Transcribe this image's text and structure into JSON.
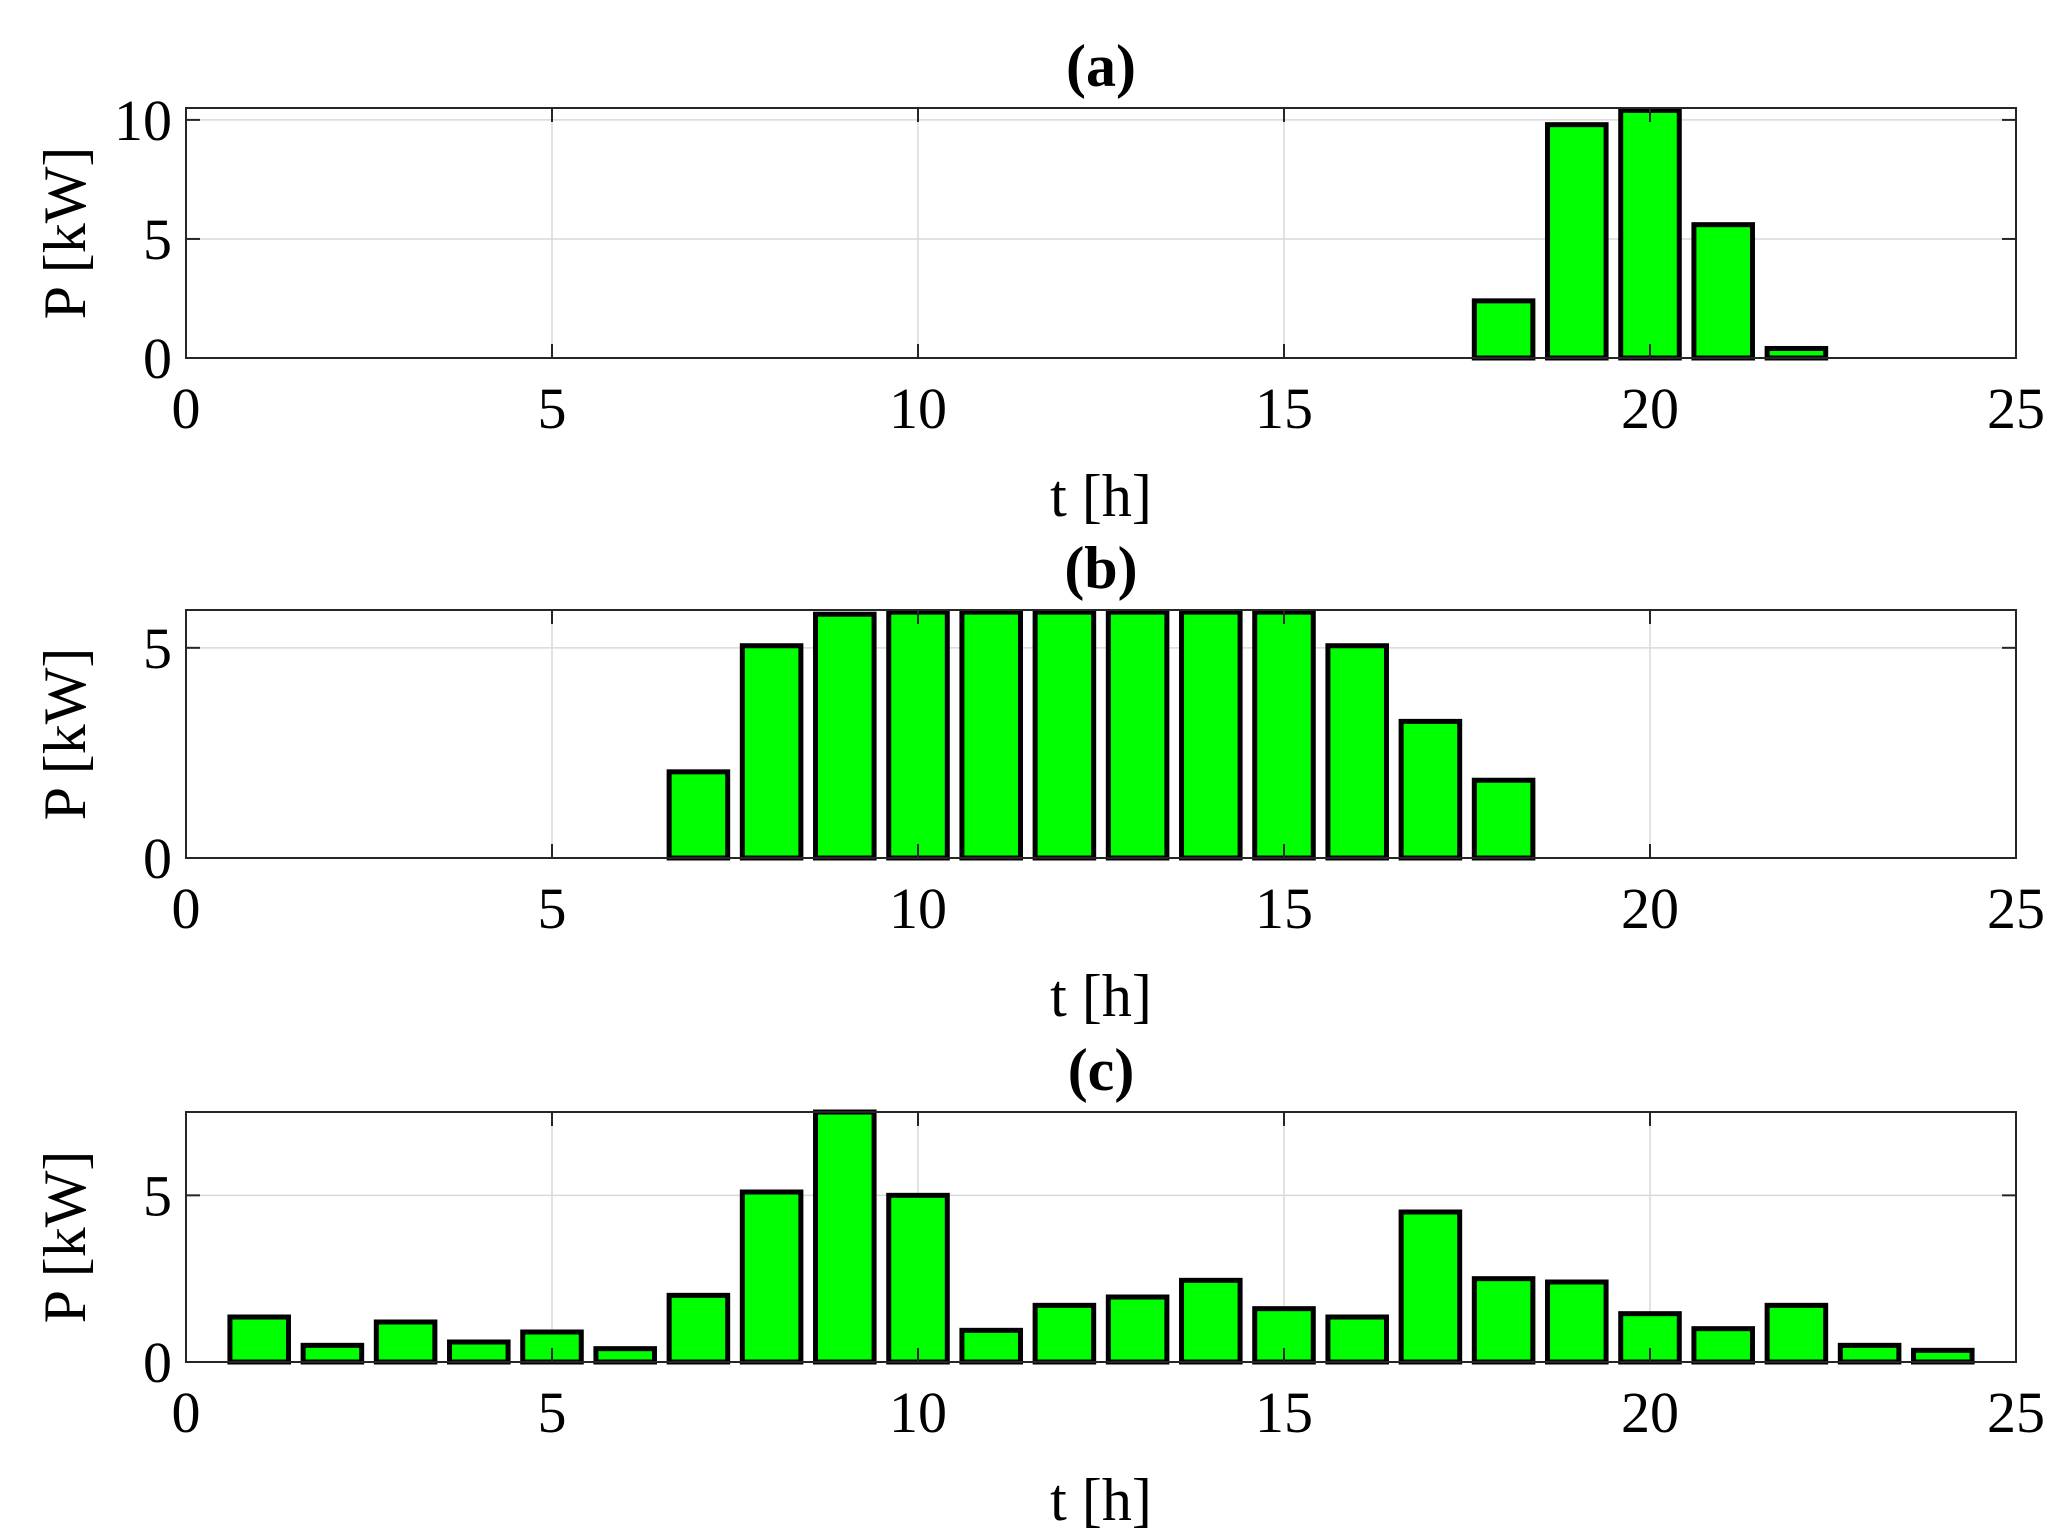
{
  "colors": {
    "bar_fill": "#00ff00",
    "bar_edge": "#000000"
  },
  "chart_data": [
    {
      "type": "bar",
      "title": "(a)",
      "xlabel": "t [h]",
      "ylabel": "P [kW]",
      "xlim": [
        0,
        25
      ],
      "ylim": [
        0,
        10.5
      ],
      "xticks": [
        0,
        5,
        10,
        15,
        20,
        25
      ],
      "yticks": [
        0,
        5,
        10
      ],
      "grid": true,
      "x": [
        1,
        2,
        3,
        4,
        5,
        6,
        7,
        8,
        9,
        10,
        11,
        12,
        13,
        14,
        15,
        16,
        17,
        18,
        19,
        20,
        21,
        22,
        23,
        24
      ],
      "values": [
        0,
        0,
        0,
        0,
        0,
        0,
        0,
        0,
        0,
        0,
        0,
        0,
        0,
        0,
        0,
        0,
        0,
        2.4,
        9.8,
        10.4,
        5.6,
        0.4,
        0,
        0
      ]
    },
    {
      "type": "bar",
      "title": "(b)",
      "xlabel": "t [h]",
      "ylabel": "P [kW]",
      "xlim": [
        0,
        25
      ],
      "ylim": [
        0,
        5.9
      ],
      "xticks": [
        0,
        5,
        10,
        15,
        20,
        25
      ],
      "yticks": [
        0,
        5
      ],
      "grid": true,
      "x": [
        1,
        2,
        3,
        4,
        5,
        6,
        7,
        8,
        9,
        10,
        11,
        12,
        13,
        14,
        15,
        16,
        17,
        18,
        19,
        20,
        21,
        22,
        23,
        24
      ],
      "values": [
        0,
        0,
        0,
        0,
        0,
        0,
        2.05,
        5.05,
        5.8,
        5.85,
        5.85,
        5.85,
        5.85,
        5.85,
        5.85,
        5.05,
        3.25,
        1.85,
        0,
        0,
        0,
        0,
        0,
        0
      ]
    },
    {
      "type": "bar",
      "title": "(c)",
      "xlabel": "t [h]",
      "ylabel": "P [kW]",
      "xlim": [
        0,
        25
      ],
      "ylim": [
        0,
        7.5
      ],
      "xticks": [
        0,
        5,
        10,
        15,
        20,
        25
      ],
      "yticks": [
        0,
        5
      ],
      "grid": true,
      "x": [
        1,
        2,
        3,
        4,
        5,
        6,
        7,
        8,
        9,
        10,
        11,
        12,
        13,
        14,
        15,
        16,
        17,
        18,
        19,
        20,
        21,
        22,
        23,
        24
      ],
      "values": [
        1.35,
        0.5,
        1.2,
        0.6,
        0.9,
        0.4,
        2.0,
        5.1,
        7.5,
        5.0,
        0.95,
        1.7,
        1.95,
        2.45,
        1.6,
        1.35,
        4.5,
        2.5,
        2.4,
        1.45,
        1.0,
        1.7,
        0.5,
        0.35
      ]
    }
  ]
}
